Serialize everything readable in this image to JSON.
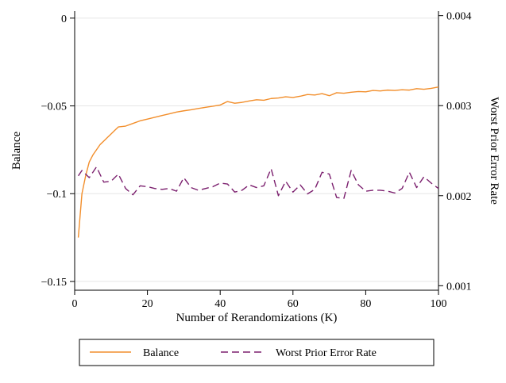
{
  "chart_data": {
    "type": "line",
    "xlabel": "Number of Rerandomizations (K)",
    "ylabel": "Balance",
    "y2label": "Worst Prior Error Rate",
    "xlim": [
      0,
      100
    ],
    "ylim": [
      -0.155,
      0.004
    ],
    "y2lim": [
      0.00095,
      0.00405
    ],
    "x_ticks": [
      0,
      20,
      40,
      60,
      80,
      100
    ],
    "x_tick_labels": [
      "0",
      "20",
      "40",
      "60",
      "80",
      "100"
    ],
    "y_ticks": [
      0,
      -0.05,
      -0.1,
      -0.15
    ],
    "y_tick_labels": [
      "0",
      "−0.05",
      "−0.1",
      "−0.15"
    ],
    "y2_ticks": [
      0.004,
      0.003,
      0.002,
      0.001
    ],
    "y2_tick_labels": [
      "0.004",
      "0.003",
      "0.002",
      "0.001"
    ],
    "grid": true,
    "legend_position": "bottom",
    "colors": {
      "balance": "#f28e2b",
      "error": "#7b1f6e"
    },
    "series": [
      {
        "name": "Balance",
        "axis": "left",
        "style": "solid",
        "x": [
          1,
          2,
          3,
          4,
          5,
          6,
          7,
          8,
          9,
          10,
          11,
          12,
          14,
          16,
          18,
          20,
          22,
          24,
          26,
          28,
          30,
          32,
          34,
          36,
          38,
          40,
          42,
          44,
          46,
          48,
          50,
          52,
          54,
          56,
          58,
          60,
          62,
          64,
          66,
          68,
          70,
          72,
          74,
          76,
          78,
          80,
          82,
          84,
          86,
          88,
          90,
          92,
          94,
          96,
          98,
          100
        ],
        "values": [
          -0.125,
          -0.1,
          -0.09,
          -0.082,
          -0.078,
          -0.075,
          -0.072,
          -0.07,
          -0.068,
          -0.066,
          -0.064,
          -0.062,
          -0.0615,
          -0.06,
          -0.0585,
          -0.0575,
          -0.0565,
          -0.0555,
          -0.0545,
          -0.0535,
          -0.0528,
          -0.0522,
          -0.0515,
          -0.0508,
          -0.0502,
          -0.0495,
          -0.0475,
          -0.0485,
          -0.048,
          -0.0472,
          -0.0465,
          -0.0468,
          -0.0458,
          -0.0455,
          -0.0448,
          -0.0452,
          -0.0445,
          -0.0435,
          -0.0438,
          -0.043,
          -0.0442,
          -0.0425,
          -0.0428,
          -0.0422,
          -0.0418,
          -0.042,
          -0.0412,
          -0.0415,
          -0.041,
          -0.0412,
          -0.0408,
          -0.041,
          -0.0402,
          -0.0405,
          -0.04,
          -0.0392
        ]
      },
      {
        "name": "Worst Prior Error Rate",
        "axis": "right",
        "style": "dashed",
        "x": [
          1,
          2,
          4,
          6,
          8,
          10,
          12,
          14,
          16,
          18,
          20,
          22,
          24,
          26,
          28,
          30,
          32,
          34,
          36,
          38,
          40,
          42,
          44,
          46,
          48,
          50,
          52,
          54,
          56,
          58,
          60,
          62,
          64,
          66,
          68,
          70,
          72,
          74,
          76,
          78,
          80,
          82,
          84,
          86,
          88,
          90,
          92,
          94,
          96,
          98,
          100
        ],
        "values": [
          0.00222,
          0.00228,
          0.0022,
          0.00232,
          0.00215,
          0.00216,
          0.00224,
          0.00208,
          0.00201,
          0.00211,
          0.0021,
          0.00208,
          0.00207,
          0.00208,
          0.00205,
          0.0022,
          0.00209,
          0.00206,
          0.00208,
          0.0021,
          0.00214,
          0.00213,
          0.00204,
          0.00206,
          0.00212,
          0.00209,
          0.00211,
          0.0023,
          0.002,
          0.00216,
          0.00204,
          0.00212,
          0.00202,
          0.00207,
          0.00226,
          0.00224,
          0.00198,
          0.00197,
          0.00228,
          0.00212,
          0.00205,
          0.00206,
          0.00206,
          0.00205,
          0.00203,
          0.00208,
          0.00226,
          0.00209,
          0.00221,
          0.00214,
          0.00208
        ]
      }
    ]
  }
}
